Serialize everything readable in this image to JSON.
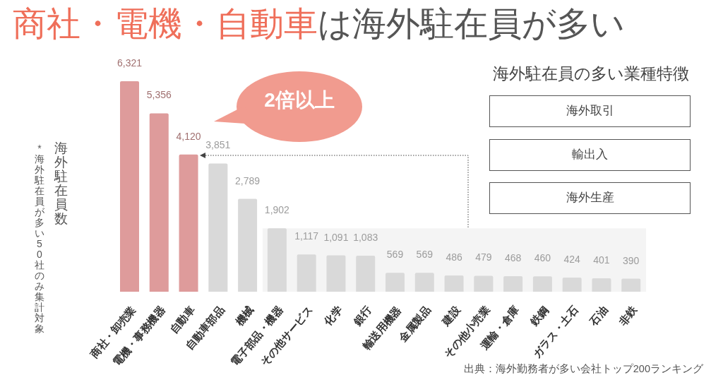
{
  "chart_data": [
    {
      "type": "bar",
      "title": "商社・電機・自動車は海外駐在員が多い",
      "ylabel": "海外駐在員数",
      "categories": [
        "商社・卸売業",
        "電機・事務機器",
        "自動車",
        "自動車部品",
        "機械",
        "電子部品・機器",
        "その他サービス",
        "化学",
        "銀行",
        "輸送用機器",
        "金属製品",
        "建設",
        "その他小売業",
        "運輸・倉庫",
        "鉄鋼",
        "ガラス・土石",
        "石油",
        "非鉄"
      ],
      "values": [
        6321,
        5356,
        4120,
        3851,
        2789,
        1902,
        1117,
        1091,
        1083,
        569,
        569,
        486,
        479,
        468,
        460,
        424,
        401,
        390
      ],
      "value_labels": [
        "6,321",
        "5,356",
        "4,120",
        "3,851",
        "2,789",
        "1,902",
        "1,117",
        "1,091",
        "1,083",
        "569",
        "569",
        "486",
        "479",
        "468",
        "460",
        "424",
        "401",
        "390"
      ],
      "colors": [
        "#de9b9b",
        "#de9b9b",
        "#de9b9b",
        "#d9d9d9",
        "#d9d9d9",
        "#d9d9d9",
        "#d9d9d9",
        "#d9d9d9",
        "#d9d9d9",
        "#d9d9d9",
        "#d9d9d9",
        "#d9d9d9",
        "#d9d9d9",
        "#d9d9d9",
        "#d9d9d9",
        "#d9d9d9",
        "#d9d9d9",
        "#d9d9d9"
      ],
      "tick_labels": "x",
      "bands": [
        {
          "axis": "x",
          "from": "電子部品・機器",
          "to": "非鉄",
          "color": "#f4f4f4"
        }
      ],
      "annotations": [
        "2倍以上",
        "*海外駐在員が多い50社のみ集計対象",
        "出典：海外勤務者が多い会社トップ200ランキング"
      ]
    },
    {
      "type": "other",
      "title": "海外駐在員の多い業種特徴",
      "annotations": [
        "海外取引",
        "輸出入",
        "海外生産"
      ]
    }
  ]
}
